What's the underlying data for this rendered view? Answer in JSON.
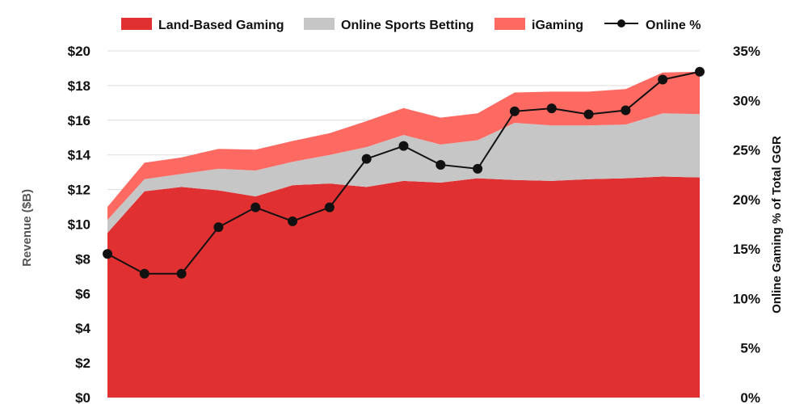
{
  "chart_data": {
    "type": "area",
    "x": [
      1,
      2,
      3,
      4,
      5,
      6,
      7,
      8,
      9,
      10,
      11,
      12,
      13,
      14,
      15,
      16,
      17
    ],
    "series": [
      {
        "name": "Land-Based Gaming",
        "kind": "stacked-area",
        "axis": "left",
        "color": "#e03032",
        "values": [
          9.5,
          11.9,
          12.15,
          11.95,
          11.6,
          12.25,
          12.35,
          12.15,
          12.5,
          12.4,
          12.65,
          12.55,
          12.5,
          12.6,
          12.65,
          12.75,
          12.7
        ]
      },
      {
        "name": "Online Sports Betting",
        "kind": "stacked-area",
        "axis": "left",
        "color": "#c6c6c6",
        "values": [
          0.75,
          0.7,
          0.75,
          1.25,
          1.5,
          1.35,
          1.65,
          2.3,
          2.65,
          2.2,
          2.2,
          3.3,
          3.2,
          3.1,
          3.1,
          3.65,
          3.65
        ]
      },
      {
        "name": "iGaming",
        "kind": "stacked-area",
        "axis": "left",
        "color": "#fe6961",
        "values": [
          0.75,
          0.95,
          0.95,
          1.15,
          1.2,
          1.2,
          1.25,
          1.5,
          1.55,
          1.55,
          1.55,
          1.75,
          1.95,
          1.95,
          2.05,
          2.35,
          2.45
        ]
      },
      {
        "name": "Online %",
        "kind": "line",
        "axis": "right",
        "color": "#111111",
        "values": [
          14.5,
          12.5,
          12.5,
          17.2,
          19.2,
          17.8,
          19.2,
          24.1,
          25.4,
          23.5,
          23.1,
          28.9,
          29.2,
          28.6,
          29.0,
          32.1,
          32.9
        ]
      }
    ],
    "ylabel": "Revenue ($B)",
    "y2label": "Online Gaming % of Total GGR",
    "ylim": [
      0,
      20
    ],
    "y2lim": [
      0,
      35
    ],
    "yticks": [
      "$0",
      "$2",
      "$4",
      "$6",
      "$8",
      "$10",
      "$12",
      "$14",
      "$16",
      "$18",
      "$20"
    ],
    "y2ticks": [
      "0%",
      "5%",
      "10%",
      "15%",
      "20%",
      "25%",
      "30%",
      "35%"
    ],
    "grid": true,
    "legend": "top"
  },
  "colors": {
    "grid": "#dcdcdc",
    "axis_title": "#555555",
    "marker": "#111111"
  }
}
